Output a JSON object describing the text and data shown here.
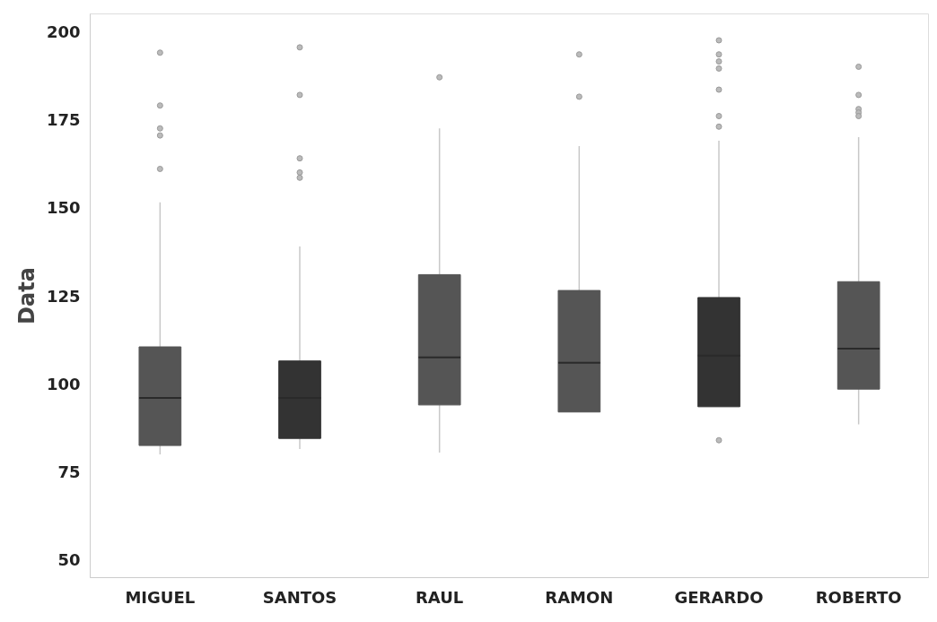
{
  "chart_data": {
    "type": "box",
    "ylabel": "Data",
    "categories": [
      "MIGUEL",
      "SANTOS",
      "RAUL",
      "RAMON",
      "GERARDO",
      "ROBERTO"
    ],
    "colors": [
      "#555555",
      "#333333",
      "#555555",
      "#555555",
      "#333333",
      "#555555"
    ],
    "boxes": [
      {
        "low": 80,
        "q1": 82.5,
        "median": 96,
        "q3": 110.5,
        "high": 151.5,
        "outliers": [
          194,
          179,
          172.5,
          170.5,
          161
        ]
      },
      {
        "low": 81.5,
        "q1": 84.5,
        "median": 96,
        "q3": 106.5,
        "high": 139,
        "outliers": [
          195.5,
          182,
          164,
          160,
          158.5
        ]
      },
      {
        "low": 80.5,
        "q1": 94,
        "median": 107.5,
        "q3": 131,
        "high": 172.5,
        "outliers": [
          187
        ]
      },
      {
        "low": 92,
        "q1": 92,
        "median": 106,
        "q3": 126.5,
        "high": 167.5,
        "outliers": [
          193.5,
          181.5
        ]
      },
      {
        "low": 93.5,
        "q1": 93.5,
        "median": 108,
        "q3": 124.5,
        "high": 169,
        "outliers": [
          197.5,
          193.5,
          191.5,
          189.5,
          183.5,
          176,
          173,
          84
        ]
      },
      {
        "low": 88.5,
        "q1": 98.5,
        "median": 110,
        "q3": 129,
        "high": 170,
        "outliers": [
          190,
          182,
          178,
          177,
          176
        ]
      }
    ],
    "ylim": [
      45,
      205
    ],
    "yticks": [
      50,
      75,
      100,
      125,
      150,
      175,
      200
    ],
    "grid": false
  }
}
